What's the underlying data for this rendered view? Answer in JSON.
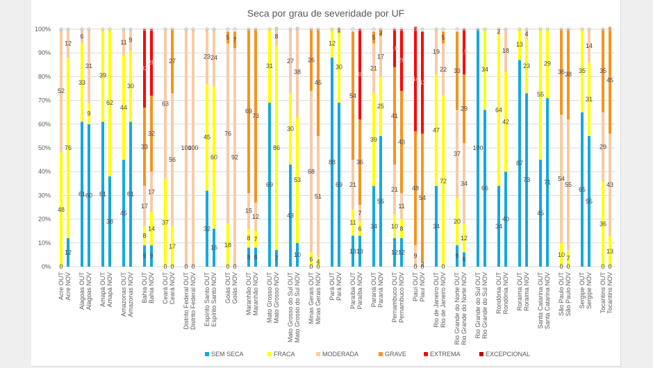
{
  "chart_data": {
    "type": "bar",
    "stacked": "percent",
    "title": "Seca por grau de severidade por UF",
    "xlabel": "",
    "ylabel": "",
    "ylim": [
      0,
      100
    ],
    "yticks": [
      "0%",
      "10%",
      "20%",
      "30%",
      "40%",
      "50%",
      "60%",
      "70%",
      "80%",
      "90%",
      "100%"
    ],
    "grid": true,
    "legend_position": "bottom",
    "categories": [
      "Acre OUT",
      "Acre NOV",
      "Alagoas OUT",
      "Alagoas NOV",
      "Amapá OUT",
      "Amapá NOV",
      "Amazonas OUT",
      "Amazonas NOV",
      "Bahia OUT",
      "Bahia NOV",
      "Ceará OUT",
      "Ceará NOV",
      "Distrito Federal OUT",
      "Distrito Federal NOV",
      "Espírito Santo OUT",
      "Espírito Santo NOV",
      "Goiás OUT",
      "Goiás NOV",
      "Maranhão OUT",
      "Maranhão NOV",
      "Mato Grosso OUT",
      "Mato Grosso NOV",
      "Mato Grosso do Sul OUT",
      "Mato Grosso do Sul NOV",
      "Minas Gerais OUT",
      "Minas Gerais NOV",
      "Pará OUT",
      "Pará NOV",
      "Paraíba OUT",
      "Paraíba NOV",
      "Paraná OUT",
      "Paraná NOV",
      "Pernambuco OUT",
      "Pernambuco NOV",
      "Piauí OUT",
      "Piauí NOV",
      "Rio de Janeiro OUT",
      "Rio de Janeiro NOV",
      "Rio Grande do Norte OUT",
      "Rio Grande do Norte NOV",
      "Rio Grande do Sul OUT",
      "Rio Grande do Sul NOV",
      "Rondônia OUT",
      "Rondônia NOV",
      "Roraima OUT",
      "Roraima NOV",
      "Santa Catarina OUT",
      "Santa Catarina NOV",
      "São Paulo OUT",
      "São Paulo NOV",
      "Sergipe OUT",
      "Sergipe NOV",
      "Tocantins OUT",
      "Tocantins NOV"
    ],
    "series": [
      {
        "name": "SEM SECA",
        "color": "#14a8e0",
        "values": [
          0,
          12,
          61,
          60,
          61,
          38,
          45,
          61,
          9,
          9,
          0,
          0,
          0,
          0,
          32,
          16,
          0,
          0,
          8,
          8,
          69,
          7,
          43,
          10,
          0,
          0,
          88,
          69,
          13,
          13,
          34,
          55,
          12,
          12,
          0,
          0,
          34,
          0,
          9,
          6,
          100,
          66,
          34,
          40,
          87,
          73,
          45,
          71,
          0,
          0,
          65,
          55,
          0,
          0
        ]
      },
      {
        "name": "FRACA",
        "color": "#ffff00",
        "values": [
          48,
          76,
          33,
          9,
          39,
          62,
          44,
          30,
          8,
          14,
          37,
          17,
          0,
          0,
          45,
          60,
          18,
          0,
          8,
          7,
          31,
          86,
          30,
          53,
          6,
          4,
          12,
          30,
          11,
          6,
          39,
          25,
          10,
          8,
          0,
          0,
          47,
          72,
          20,
          12,
          0,
          34,
          64,
          42,
          13,
          23,
          55,
          29,
          10,
          7,
          35,
          31,
          36,
          13
        ]
      },
      {
        "name": "MODERADA",
        "color": "#f8cba5",
        "values": [
          52,
          12,
          6,
          31,
          0,
          0,
          11,
          9,
          17,
          17,
          63,
          56,
          100,
          100,
          23,
          24,
          76,
          92,
          15,
          12,
          0,
          8,
          27,
          38,
          68,
          51,
          0,
          0,
          21,
          7,
          21,
          17,
          21,
          11,
          9,
          2,
          19,
          22,
          37,
          34,
          0,
          0,
          2,
          18,
          0,
          4,
          0,
          0,
          54,
          55,
          0,
          14,
          29,
          43
        ]
      },
      {
        "name": "GRAVE",
        "color": "#f7931e",
        "values": [
          0,
          0,
          0,
          0,
          0,
          0,
          0,
          0,
          33,
          32,
          0,
          27,
          0,
          0,
          0,
          0,
          5,
          7,
          69,
          73,
          0,
          0,
          0,
          0,
          26,
          45,
          0,
          1,
          54,
          36,
          5,
          3,
          41,
          43,
          48,
          54,
          0,
          5,
          33,
          29,
          0,
          0,
          0,
          0,
          0,
          0,
          0,
          0,
          36,
          38,
          0,
          0,
          35,
          45
        ]
      },
      {
        "name": "EXTREMA",
        "color": "#ff0000",
        "values": [
          0,
          0,
          0,
          0,
          0,
          0,
          0,
          0,
          33,
          28,
          0,
          0,
          0,
          0,
          0,
          0,
          0,
          0,
          0,
          0,
          0,
          0,
          0,
          0,
          0,
          0,
          0,
          0,
          0,
          38,
          0,
          0,
          16,
          26,
          44,
          43,
          0,
          0,
          0,
          19,
          0,
          0,
          0,
          0,
          0,
          0,
          0,
          0,
          0,
          0,
          0,
          0,
          0,
          0
        ]
      },
      {
        "name": "EXCEPCIONAL",
        "color": "#c00000",
        "values": [
          0,
          0,
          0,
          0,
          0,
          0,
          0,
          0,
          0,
          0,
          0,
          0,
          0,
          0,
          0,
          0,
          0,
          0,
          0,
          0,
          0,
          0,
          0,
          0,
          0,
          0,
          0,
          0,
          0,
          0,
          0,
          0,
          0,
          0,
          0,
          0,
          0,
          0,
          0,
          0,
          0,
          0,
          0,
          0,
          0,
          0,
          0,
          0,
          0,
          0,
          0,
          0,
          0,
          0
        ]
      }
    ]
  }
}
